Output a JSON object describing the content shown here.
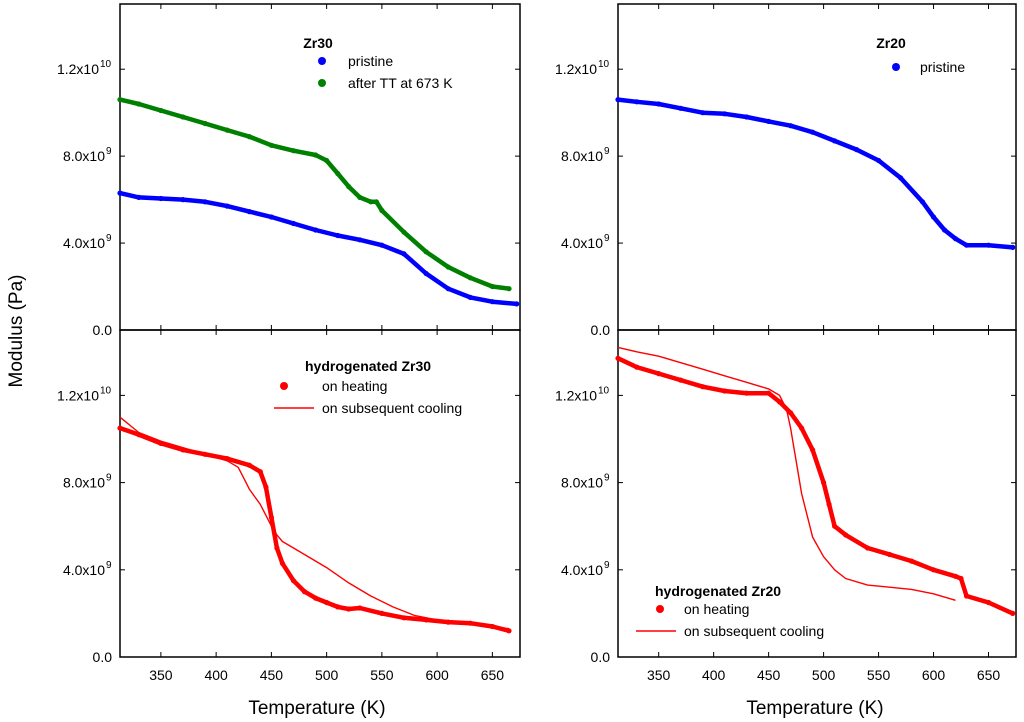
{
  "chart_data": {
    "type": "scatter",
    "ylabel": "Modulus (Pa)",
    "xlabel": "Temperature (K)",
    "xlim": [
      313,
      675
    ],
    "ylim": [
      0,
      15000000000.0
    ],
    "xticks": [
      350,
      400,
      450,
      500,
      550,
      600,
      650
    ],
    "yticks": [
      {
        "value": 0,
        "mant": "0.0",
        "exp": ""
      },
      {
        "value": 4000000000,
        "mant": "4.0x10",
        "exp": "9"
      },
      {
        "value": 8000000000,
        "mant": "8.0x10",
        "exp": "9"
      },
      {
        "value": 12000000000,
        "mant": "1.2x10",
        "exp": "10"
      }
    ],
    "panels": [
      {
        "id": "top-left",
        "title": "Zr30",
        "series": [
          {
            "name": "pristine",
            "color": "#0000ff",
            "style": "dots",
            "x": [
              313,
              330,
              350,
              370,
              390,
              410,
              430,
              450,
              470,
              490,
              510,
              530,
              550,
              570,
              590,
              610,
              630,
              650,
              672
            ],
            "y": [
              6300000000.0,
              6100000000.0,
              6050000000.0,
              6000000000.0,
              5900000000.0,
              5700000000.0,
              5450000000.0,
              5200000000.0,
              4900000000.0,
              4600000000.0,
              4350000000.0,
              4150000000.0,
              3900000000.0,
              3500000000.0,
              2600000000.0,
              1900000000.0,
              1500000000.0,
              1300000000.0,
              1200000000.0
            ]
          },
          {
            "name": "after TT at 673 K",
            "color": "#008000",
            "style": "dots",
            "x": [
              313,
              330,
              350,
              370,
              390,
              410,
              430,
              450,
              470,
              490,
              500,
              510,
              520,
              530,
              540,
              545,
              550,
              570,
              590,
              610,
              630,
              650,
              665
            ],
            "y": [
              10600000000.0,
              10400000000.0,
              10100000000.0,
              9800000000.0,
              9500000000.0,
              9200000000.0,
              8900000000.0,
              8500000000.0,
              8250000000.0,
              8050000000.0,
              7800000000.0,
              7200000000.0,
              6600000000.0,
              6100000000.0,
              5900000000.0,
              5900000000.0,
              5500000000.0,
              4500000000.0,
              3600000000.0,
              2900000000.0,
              2400000000.0,
              2000000000.0,
              1900000000.0
            ]
          }
        ]
      },
      {
        "id": "top-right",
        "title": "Zr20",
        "series": [
          {
            "name": "pristine",
            "color": "#0000ff",
            "style": "dots",
            "x": [
              313,
              330,
              350,
              370,
              390,
              410,
              430,
              450,
              470,
              490,
              510,
              530,
              550,
              570,
              590,
              600,
              610,
              620,
              630,
              650,
              672
            ],
            "y": [
              10600000000.0,
              10500000000.0,
              10400000000.0,
              10200000000.0,
              10000000000.0,
              9950000000.0,
              9800000000.0,
              9600000000.0,
              9400000000.0,
              9100000000.0,
              8700000000.0,
              8300000000.0,
              7800000000.0,
              7000000000.0,
              5900000000.0,
              5200000000.0,
              4600000000.0,
              4200000000.0,
              3900000000.0,
              3900000000.0,
              3800000000.0
            ]
          }
        ]
      },
      {
        "id": "bottom-left",
        "title": "hydrogenated Zr30",
        "series": [
          {
            "name": "on heating",
            "color": "#ff0000",
            "style": "dots",
            "x": [
              313,
              330,
              350,
              370,
              390,
              410,
              430,
              440,
              445,
              450,
              455,
              460,
              470,
              480,
              490,
              500,
              510,
              520,
              530,
              550,
              570,
              590,
              610,
              630,
              650,
              665
            ],
            "y": [
              10500000000.0,
              10200000000.0,
              9800000000.0,
              9500000000.0,
              9300000000.0,
              9100000000.0,
              8800000000.0,
              8500000000.0,
              7800000000.0,
              6400000000.0,
              5000000000.0,
              4300000000.0,
              3500000000.0,
              3000000000.0,
              2700000000.0,
              2500000000.0,
              2300000000.0,
              2200000000.0,
              2250000000.0,
              2000000000.0,
              1800000000.0,
              1700000000.0,
              1600000000.0,
              1550000000.0,
              1400000000.0,
              1200000000.0
            ]
          },
          {
            "name": "on subsequent cooling",
            "color": "#ff0000",
            "style": "line",
            "x": [
              665,
              650,
              630,
              600,
              580,
              560,
              540,
              520,
              500,
              480,
              470,
              460,
              455,
              450,
              445,
              440,
              430,
              425,
              420,
              410,
              390,
              370,
              350,
              330,
              313
            ],
            "y": [
              1300000000.0,
              1400000000.0,
              1500000000.0,
              1700000000.0,
              1900000000.0,
              2300000000.0,
              2800000000.0,
              3400000000.0,
              4100000000.0,
              4700000000.0,
              5000000000.0,
              5300000000.0,
              5600000000.0,
              6000000000.0,
              6500000000.0,
              7000000000.0,
              7700000000.0,
              8200000000.0,
              8700000000.0,
              9000000000.0,
              9300000000.0,
              9600000000.0,
              9900000000.0,
              10300000000.0,
              11000000000.0
            ]
          }
        ]
      },
      {
        "id": "bottom-right",
        "title": "hydrogenated Zr20",
        "series": [
          {
            "name": "on heating",
            "color": "#ff0000",
            "style": "dots",
            "x": [
              313,
              330,
              350,
              370,
              390,
              410,
              430,
              450,
              460,
              470,
              480,
              490,
              500,
              505,
              510,
              520,
              540,
              560,
              580,
              600,
              620,
              625,
              630,
              650,
              672
            ],
            "y": [
              13700000000.0,
              13300000000.0,
              13000000000.0,
              12700000000.0,
              12400000000.0,
              12200000000.0,
              12100000000.0,
              12100000000.0,
              11700000000.0,
              11200000000.0,
              10500000000.0,
              9500000000.0,
              8000000000.0,
              7000000000.0,
              6000000000.0,
              5600000000.0,
              5000000000.0,
              4700000000.0,
              4400000000.0,
              4000000000.0,
              3700000000.0,
              3600000000.0,
              2800000000.0,
              2500000000.0,
              2000000000.0
            ]
          },
          {
            "name": "on subsequent cooling",
            "color": "#ff0000",
            "style": "line",
            "x": [
              620,
              600,
              580,
              560,
              540,
              520,
              510,
              500,
              490,
              480,
              475,
              470,
              467,
              465,
              462,
              460,
              450,
              430,
              410,
              390,
              370,
              350,
              330,
              313
            ],
            "y": [
              2600000000.0,
              2900000000.0,
              3100000000.0,
              3200000000.0,
              3300000000.0,
              3600000000.0,
              4000000000.0,
              4600000000.0,
              5500000000.0,
              7500000000.0,
              9000000000.0,
              10500000000.0,
              11200000000.0,
              11500000000.0,
              11800000000.0,
              12000000000.0,
              12300000000.0,
              12600000000.0,
              12900000000.0,
              13200000000.0,
              13500000000.0,
              13800000000.0,
              14000000000.0,
              14200000000.0
            ]
          }
        ]
      }
    ]
  }
}
